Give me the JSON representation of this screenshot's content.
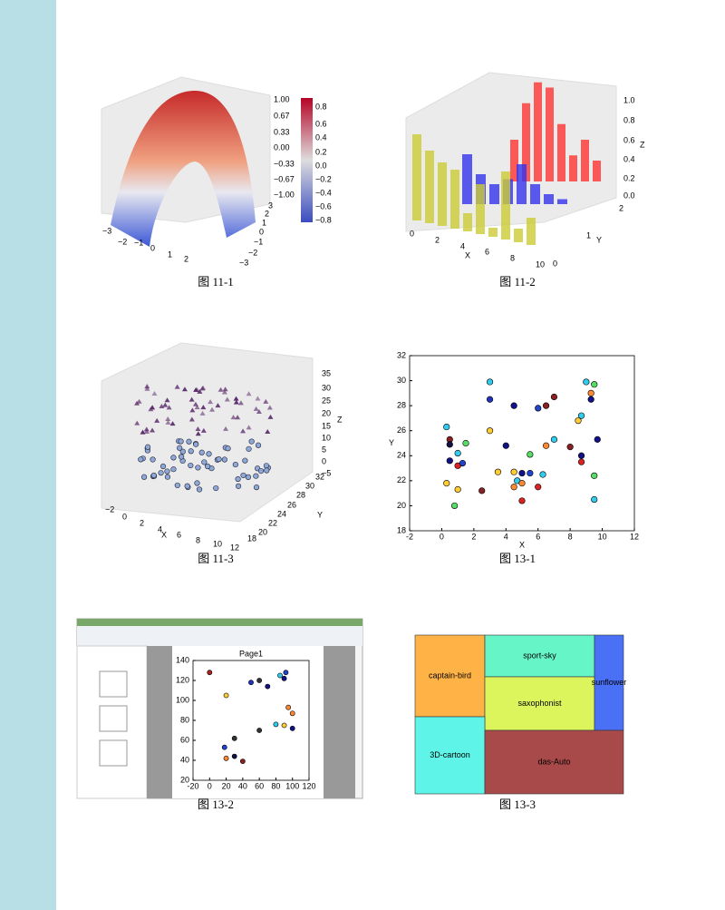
{
  "figures": [
    {
      "caption": "图 11-1",
      "x_ticks": [
        "−3",
        "−2",
        "−1",
        "0",
        "1",
        "2"
      ],
      "y_ticks": [
        "−3",
        "−2",
        "−1",
        "0",
        "1",
        "2",
        "3"
      ],
      "z_ticks": [
        "1.00",
        "0.67",
        "0.33",
        "0.00",
        "−0.33",
        "−0.67",
        "−1.00"
      ],
      "colorbar_ticks": [
        "0.8",
        "0.6",
        "0.4",
        "0.2",
        "0.0",
        "−0.2",
        "−0.4",
        "−0.6",
        "−0.8"
      ]
    },
    {
      "caption": "图 11-2",
      "x_ticks": [
        "0",
        "2",
        "4",
        "6",
        "8",
        "10"
      ],
      "x_label": "X",
      "y_ticks": [
        "0",
        "1",
        "2"
      ],
      "y_label": "Y",
      "z_ticks": [
        "0.0",
        "0.2",
        "0.4",
        "0.6",
        "0.8",
        "1.0"
      ],
      "z_label": "Z"
    },
    {
      "caption": "图 11-3",
      "x_ticks": [
        "−2",
        "0",
        "2",
        "4",
        "6",
        "8",
        "10",
        "12"
      ],
      "x_label": "X",
      "y_ticks": [
        "18",
        "20",
        "22",
        "24",
        "26",
        "28",
        "30",
        "32"
      ],
      "y_label": "Y",
      "z_ticks": [
        "35",
        "30",
        "25",
        "20",
        "15",
        "10",
        "5",
        "0",
        "−5"
      ],
      "z_label": "Z"
    },
    {
      "caption": "图 13-1",
      "chart_data": {
        "type": "scatter",
        "x_label": "X",
        "y_label": "Y",
        "xlim": [
          -2,
          12
        ],
        "xticks": [
          -2,
          0,
          2,
          4,
          6,
          8,
          10,
          12
        ],
        "ylim": [
          18,
          32
        ],
        "yticks": [
          18,
          20,
          22,
          24,
          26,
          28,
          30,
          32
        ],
        "x": [
          0.3,
          0.5,
          0.5,
          1.5,
          1,
          0.5,
          1,
          1.3,
          0.3,
          1,
          0.8,
          3,
          3,
          3,
          4,
          3.5,
          4.5,
          5,
          4.7,
          4.5,
          5,
          5,
          6,
          6.3,
          5.5,
          2.5,
          4.5,
          6,
          6.5,
          7,
          7,
          6.5,
          5.5,
          8,
          8.7,
          8.5,
          8.7,
          9,
          9.5,
          9.3,
          9.3,
          9.7,
          9.5,
          9.5,
          8.7
        ],
        "y": [
          26.3,
          25.3,
          24.9,
          25,
          24.2,
          23.6,
          23.2,
          23.4,
          21.8,
          21.3,
          20,
          29.9,
          28.5,
          26,
          24.8,
          22.7,
          22.7,
          22.6,
          22,
          21.5,
          21.8,
          20.4,
          21.5,
          22.5,
          22.6,
          21.2,
          28,
          27.8,
          28,
          28.7,
          25.3,
          24.8,
          24.1,
          24.7,
          23.5,
          26.8,
          27.2,
          29.9,
          29.7,
          29,
          28.5,
          25.3,
          22.4,
          20.5,
          24
        ],
        "colors": [
          "#33ccee",
          "#882222",
          "#111144",
          "#55dd66",
          "#33ccee",
          "#111188",
          "#dd2222",
          "#2244cc",
          "#ffcc33",
          "#ffcc33",
          "#55dd66",
          "#33ccee",
          "#2233bb",
          "#ffcc33",
          "#111188",
          "#ffcc33",
          "#ffcc33",
          "#111188",
          "#33ccee",
          "#ff8833",
          "#ff8833",
          "#dd2222",
          "#dd2222",
          "#33ccee",
          "#2244cc",
          "#882222",
          "#111188",
          "#2244cc",
          "#882222",
          "#882222",
          "#33ccee",
          "#ff8833",
          "#55dd66",
          "#882222",
          "#dd2222",
          "#ffcc33",
          "#33ccee",
          "#33ccee",
          "#55dd66",
          "#ff8833",
          "#111188",
          "#111188",
          "#55dd66",
          "#33ccee",
          "#111188"
        ]
      }
    },
    {
      "caption": "图 13-2",
      "chart_data": {
        "type": "scatter",
        "title": "Page1",
        "xlim": [
          -20,
          120
        ],
        "xticks": [
          -20,
          0,
          20,
          40,
          60,
          80,
          100,
          120
        ],
        "ylim": [
          20,
          140
        ],
        "yticks": [
          20,
          40,
          60,
          80,
          100,
          120,
          140
        ],
        "x": [
          0,
          20,
          50,
          60,
          70,
          85,
          90,
          92,
          95,
          100,
          80,
          90,
          100,
          30,
          60,
          18,
          30,
          20,
          40
        ],
        "y": [
          128,
          105,
          118,
          120,
          114,
          125,
          122,
          128,
          93,
          87,
          76,
          75,
          72,
          62,
          70,
          53,
          44,
          42,
          39
        ],
        "colors": [
          "#aa2222",
          "#ffcc33",
          "#2233bb",
          "#333333",
          "#111188",
          "#33ccee",
          "#111188",
          "#2244cc",
          "#ff8833",
          "#ff8833",
          "#33ccee",
          "#ffcc33",
          "#111188",
          "#333333",
          "#333333",
          "#2244cc",
          "#111144",
          "#ff8833",
          "#882222"
        ]
      }
    },
    {
      "caption": "图 13-3",
      "labels": [
        "captain-bird",
        "sport-sky",
        "saxophonist",
        "sunflower",
        "3D-cartoon",
        "das-Auto"
      ]
    }
  ]
}
